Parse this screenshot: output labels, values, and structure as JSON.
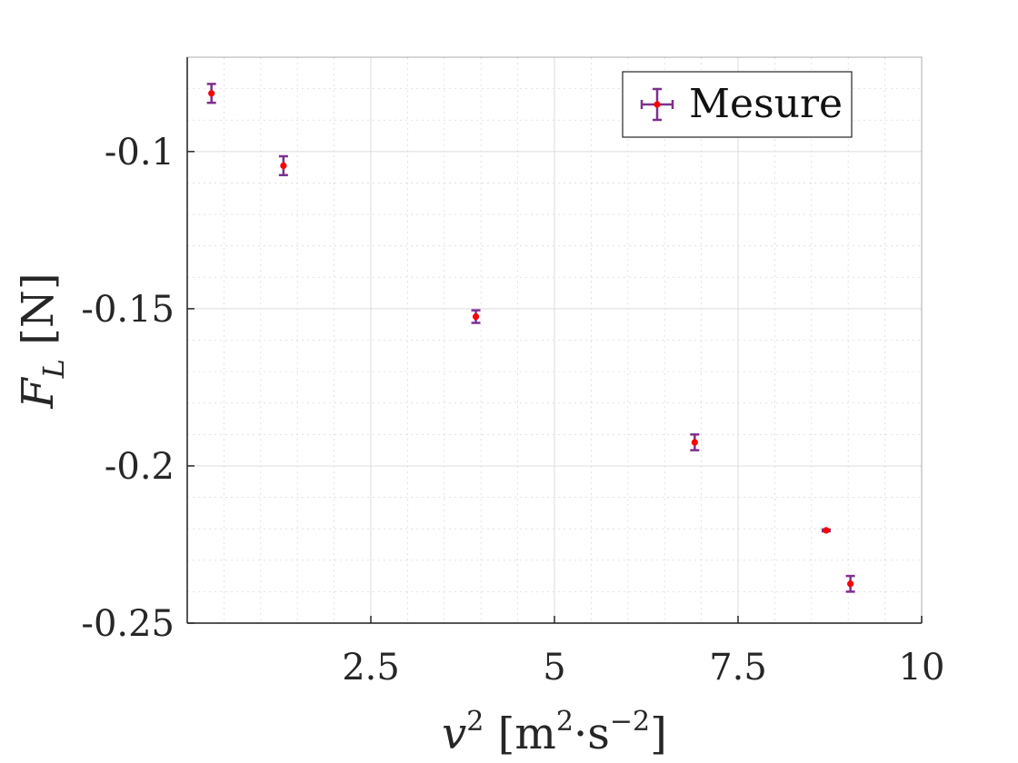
{
  "chart_data": {
    "type": "scatter",
    "title": "",
    "xlabel": {
      "main": "v",
      "sup": "2",
      "unit_open": " [m",
      "unit_sup1": "2",
      "unit_mid": "·s",
      "unit_sup2": "−2",
      "unit_close": "]"
    },
    "ylabel": {
      "main": "F",
      "sub": "L",
      "unit": " [N]"
    },
    "xlim": [
      0.0,
      10.0
    ],
    "ylim": [
      -0.25,
      -0.07
    ],
    "xticks": [
      2.5,
      5,
      7.5,
      10
    ],
    "xtick_labels": [
      "2.5",
      "5",
      "7.5",
      "10"
    ],
    "yticks": [
      -0.25,
      -0.2,
      -0.15,
      -0.1
    ],
    "ytick_labels": [
      "-0.25",
      "-0.2",
      "-0.15",
      "-0.1"
    ],
    "grid": true,
    "minor_grid": true,
    "legend": {
      "position": "top-right",
      "entries": [
        "Mesure"
      ]
    },
    "colors": {
      "errorbar": "#7e2f8e",
      "marker": "#ff0000",
      "grid": "#dcdcdc",
      "axis": "#262626"
    },
    "series": [
      {
        "name": "Mesure",
        "x": [
          0.33,
          1.31,
          3.93,
          6.91,
          8.7,
          9.03
        ],
        "y": [
          -0.0815,
          -0.1045,
          -0.1525,
          -0.1925,
          -0.2205,
          -0.2375
        ],
        "yerr": [
          0.003,
          0.003,
          0.002,
          0.0025,
          0.0003,
          0.0025
        ]
      }
    ]
  }
}
